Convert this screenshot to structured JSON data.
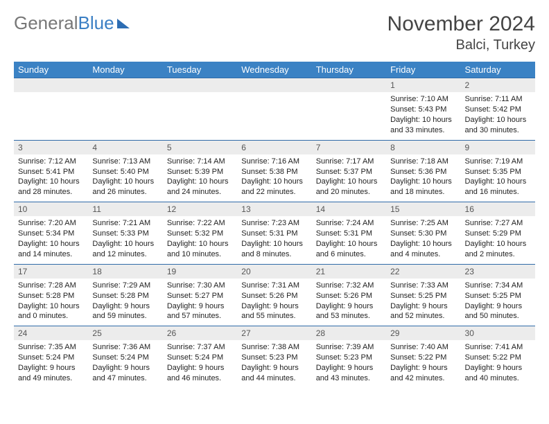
{
  "logo": {
    "text1": "General",
    "text2": "Blue"
  },
  "title": "November 2024",
  "location": "Balci, Turkey",
  "columns": [
    "Sunday",
    "Monday",
    "Tuesday",
    "Wednesday",
    "Thursday",
    "Friday",
    "Saturday"
  ],
  "colors": {
    "header_bg": "#3b82c4",
    "header_fg": "#ffffff",
    "daynum_bg": "#ececec",
    "row_border": "#2f6aa8",
    "logo_gray": "#777777",
    "logo_blue": "#3b7fc4"
  },
  "weeks": [
    [
      null,
      null,
      null,
      null,
      null,
      {
        "n": "1",
        "sr": "Sunrise: 7:10 AM",
        "ss": "Sunset: 5:43 PM",
        "d1": "Daylight: 10 hours",
        "d2": "and 33 minutes."
      },
      {
        "n": "2",
        "sr": "Sunrise: 7:11 AM",
        "ss": "Sunset: 5:42 PM",
        "d1": "Daylight: 10 hours",
        "d2": "and 30 minutes."
      }
    ],
    [
      {
        "n": "3",
        "sr": "Sunrise: 7:12 AM",
        "ss": "Sunset: 5:41 PM",
        "d1": "Daylight: 10 hours",
        "d2": "and 28 minutes."
      },
      {
        "n": "4",
        "sr": "Sunrise: 7:13 AM",
        "ss": "Sunset: 5:40 PM",
        "d1": "Daylight: 10 hours",
        "d2": "and 26 minutes."
      },
      {
        "n": "5",
        "sr": "Sunrise: 7:14 AM",
        "ss": "Sunset: 5:39 PM",
        "d1": "Daylight: 10 hours",
        "d2": "and 24 minutes."
      },
      {
        "n": "6",
        "sr": "Sunrise: 7:16 AM",
        "ss": "Sunset: 5:38 PM",
        "d1": "Daylight: 10 hours",
        "d2": "and 22 minutes."
      },
      {
        "n": "7",
        "sr": "Sunrise: 7:17 AM",
        "ss": "Sunset: 5:37 PM",
        "d1": "Daylight: 10 hours",
        "d2": "and 20 minutes."
      },
      {
        "n": "8",
        "sr": "Sunrise: 7:18 AM",
        "ss": "Sunset: 5:36 PM",
        "d1": "Daylight: 10 hours",
        "d2": "and 18 minutes."
      },
      {
        "n": "9",
        "sr": "Sunrise: 7:19 AM",
        "ss": "Sunset: 5:35 PM",
        "d1": "Daylight: 10 hours",
        "d2": "and 16 minutes."
      }
    ],
    [
      {
        "n": "10",
        "sr": "Sunrise: 7:20 AM",
        "ss": "Sunset: 5:34 PM",
        "d1": "Daylight: 10 hours",
        "d2": "and 14 minutes."
      },
      {
        "n": "11",
        "sr": "Sunrise: 7:21 AM",
        "ss": "Sunset: 5:33 PM",
        "d1": "Daylight: 10 hours",
        "d2": "and 12 minutes."
      },
      {
        "n": "12",
        "sr": "Sunrise: 7:22 AM",
        "ss": "Sunset: 5:32 PM",
        "d1": "Daylight: 10 hours",
        "d2": "and 10 minutes."
      },
      {
        "n": "13",
        "sr": "Sunrise: 7:23 AM",
        "ss": "Sunset: 5:31 PM",
        "d1": "Daylight: 10 hours",
        "d2": "and 8 minutes."
      },
      {
        "n": "14",
        "sr": "Sunrise: 7:24 AM",
        "ss": "Sunset: 5:31 PM",
        "d1": "Daylight: 10 hours",
        "d2": "and 6 minutes."
      },
      {
        "n": "15",
        "sr": "Sunrise: 7:25 AM",
        "ss": "Sunset: 5:30 PM",
        "d1": "Daylight: 10 hours",
        "d2": "and 4 minutes."
      },
      {
        "n": "16",
        "sr": "Sunrise: 7:27 AM",
        "ss": "Sunset: 5:29 PM",
        "d1": "Daylight: 10 hours",
        "d2": "and 2 minutes."
      }
    ],
    [
      {
        "n": "17",
        "sr": "Sunrise: 7:28 AM",
        "ss": "Sunset: 5:28 PM",
        "d1": "Daylight: 10 hours",
        "d2": "and 0 minutes."
      },
      {
        "n": "18",
        "sr": "Sunrise: 7:29 AM",
        "ss": "Sunset: 5:28 PM",
        "d1": "Daylight: 9 hours",
        "d2": "and 59 minutes."
      },
      {
        "n": "19",
        "sr": "Sunrise: 7:30 AM",
        "ss": "Sunset: 5:27 PM",
        "d1": "Daylight: 9 hours",
        "d2": "and 57 minutes."
      },
      {
        "n": "20",
        "sr": "Sunrise: 7:31 AM",
        "ss": "Sunset: 5:26 PM",
        "d1": "Daylight: 9 hours",
        "d2": "and 55 minutes."
      },
      {
        "n": "21",
        "sr": "Sunrise: 7:32 AM",
        "ss": "Sunset: 5:26 PM",
        "d1": "Daylight: 9 hours",
        "d2": "and 53 minutes."
      },
      {
        "n": "22",
        "sr": "Sunrise: 7:33 AM",
        "ss": "Sunset: 5:25 PM",
        "d1": "Daylight: 9 hours",
        "d2": "and 52 minutes."
      },
      {
        "n": "23",
        "sr": "Sunrise: 7:34 AM",
        "ss": "Sunset: 5:25 PM",
        "d1": "Daylight: 9 hours",
        "d2": "and 50 minutes."
      }
    ],
    [
      {
        "n": "24",
        "sr": "Sunrise: 7:35 AM",
        "ss": "Sunset: 5:24 PM",
        "d1": "Daylight: 9 hours",
        "d2": "and 49 minutes."
      },
      {
        "n": "25",
        "sr": "Sunrise: 7:36 AM",
        "ss": "Sunset: 5:24 PM",
        "d1": "Daylight: 9 hours",
        "d2": "and 47 minutes."
      },
      {
        "n": "26",
        "sr": "Sunrise: 7:37 AM",
        "ss": "Sunset: 5:24 PM",
        "d1": "Daylight: 9 hours",
        "d2": "and 46 minutes."
      },
      {
        "n": "27",
        "sr": "Sunrise: 7:38 AM",
        "ss": "Sunset: 5:23 PM",
        "d1": "Daylight: 9 hours",
        "d2": "and 44 minutes."
      },
      {
        "n": "28",
        "sr": "Sunrise: 7:39 AM",
        "ss": "Sunset: 5:23 PM",
        "d1": "Daylight: 9 hours",
        "d2": "and 43 minutes."
      },
      {
        "n": "29",
        "sr": "Sunrise: 7:40 AM",
        "ss": "Sunset: 5:22 PM",
        "d1": "Daylight: 9 hours",
        "d2": "and 42 minutes."
      },
      {
        "n": "30",
        "sr": "Sunrise: 7:41 AM",
        "ss": "Sunset: 5:22 PM",
        "d1": "Daylight: 9 hours",
        "d2": "and 40 minutes."
      }
    ]
  ]
}
